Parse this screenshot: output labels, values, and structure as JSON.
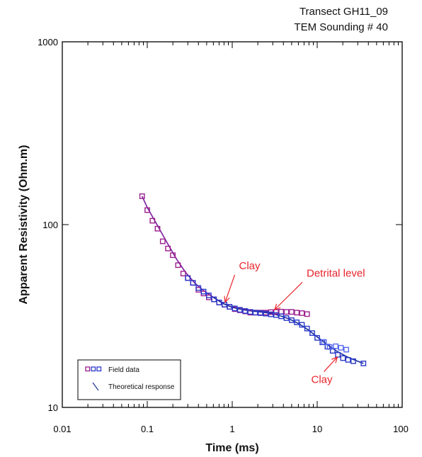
{
  "chart_data": {
    "type": "scatter",
    "title": "Transect GH11_09",
    "subtitle": "TEM Sounding # 40",
    "xlabel": "Time (ms)",
    "ylabel": "Apparent Resistivity (Ohm.m)",
    "x_scale": "log",
    "y_scale": "log",
    "xlim": [
      0.01,
      100
    ],
    "ylim": [
      10,
      1000
    ],
    "x_tick_labels": [
      "0.01",
      "0.1",
      "1",
      "10",
      "100"
    ],
    "y_tick_labels": [
      "10",
      "100",
      "1000"
    ],
    "grid": false,
    "legend_position": "bottom-left",
    "colors": {
      "field_a": "#9b1f8f",
      "field_b": "#2a39c8",
      "field_c": "#5569ee",
      "line_a": "#7a1a9a",
      "line_b": "#1a2f9c",
      "annotation": "#e8232a"
    },
    "series": [
      {
        "name": "Field data",
        "color_key": "field_a",
        "x": [
          0.087,
          0.1,
          0.115,
          0.132,
          0.152,
          0.175,
          0.2,
          0.23,
          0.265,
          0.3,
          0.345,
          0.4,
          0.46,
          0.53,
          0.61,
          0.7,
          0.81,
          0.93,
          1.07,
          1.23,
          1.42,
          1.63,
          1.87,
          2.15,
          2.48,
          2.85,
          3.28,
          3.77,
          4.34,
          5.0,
          5.75,
          6.61,
          7.6
        ],
        "y": [
          143,
          120,
          105,
          95,
          81,
          74,
          68,
          60,
          54,
          51,
          48,
          44,
          42,
          40,
          39,
          37.5,
          36.5,
          35.5,
          34.5,
          34,
          33.5,
          33,
          33,
          33,
          33,
          33.2,
          33.3,
          33.4,
          33.3,
          33.3,
          33,
          32.8,
          32.4
        ]
      },
      {
        "name": "",
        "color_key": "field_b",
        "x": [
          0.3,
          0.345,
          0.4,
          0.46,
          0.53,
          0.61,
          0.7,
          0.81,
          0.93,
          1.07,
          1.23,
          1.42,
          1.63,
          1.87,
          2.15,
          2.48,
          2.85,
          3.28,
          3.77,
          4.34,
          5.0,
          5.75,
          6.61,
          7.6,
          8.74,
          10.0,
          11.5,
          13.2,
          15.2,
          17.5,
          20.1,
          23.1,
          26.6,
          35.0
        ],
        "y": [
          51,
          48,
          45,
          43,
          41,
          39,
          37.5,
          36.5,
          35.5,
          34.8,
          34.2,
          33.7,
          33.3,
          33,
          32.8,
          32.6,
          32.3,
          32,
          31.5,
          30.8,
          30,
          29.2,
          28.3,
          27,
          25.5,
          24,
          22.7,
          21.5,
          20.4,
          19.4,
          18.6,
          18.2,
          17.9,
          17.4
        ]
      },
      {
        "name": "",
        "color_key": "field_c",
        "x": [
          12.0,
          14.0,
          16.5,
          19.0,
          22.0
        ],
        "y": [
          22.8,
          21.4,
          21.6,
          21.2,
          20.7
        ]
      },
      {
        "name": "Theoretical response",
        "color_key": "line_a",
        "x": [
          0.087,
          0.1,
          0.13,
          0.17,
          0.22,
          0.28,
          0.36,
          0.46,
          0.6,
          0.78,
          1.0,
          1.3,
          1.7,
          2.2,
          2.8,
          3.5
        ],
        "y": [
          143,
          124,
          100,
          80,
          65,
          55,
          48,
          43.5,
          40,
          37,
          35.3,
          34.3,
          33.7,
          33.3,
          33.0,
          32.8
        ]
      },
      {
        "name": "",
        "color_key": "line_b",
        "x": [
          0.6,
          0.78,
          1.0,
          1.3,
          1.7,
          2.2,
          2.8,
          3.6,
          4.6,
          6.0,
          7.8,
          10.0,
          13.0,
          17.0,
          22.0,
          28.0,
          35.0
        ],
        "y": [
          40,
          37,
          35.3,
          34.3,
          33.7,
          33.2,
          32.7,
          31.8,
          30.6,
          28.8,
          26.6,
          24.3,
          22.1,
          20.3,
          19.0,
          18.1,
          17.4
        ]
      }
    ],
    "annotations": [
      {
        "text": "Clay",
        "x": 1.2,
        "y": 57,
        "arrow_to": [
          0.83,
          38
        ]
      },
      {
        "text": "Detrital level",
        "x": 7.5,
        "y": 52,
        "arrow_to": [
          3.2,
          34.5
        ]
      },
      {
        "text": "Clay",
        "x": 8.5,
        "y": 13.6,
        "arrow_to": [
          17.0,
          18.7
        ]
      }
    ]
  }
}
